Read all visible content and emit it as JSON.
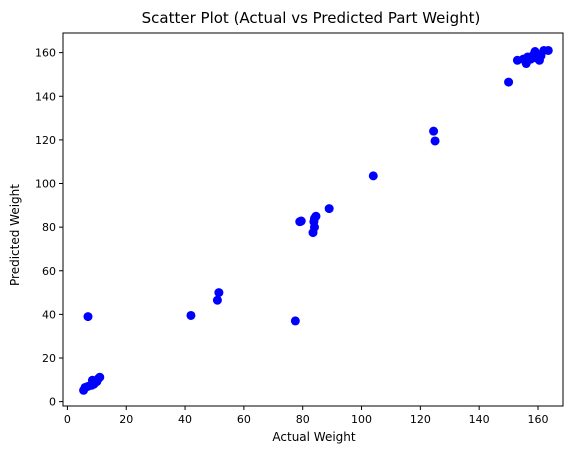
{
  "chart_data": {
    "type": "scatter",
    "title": "Scatter Plot (Actual vs Predicted Part Weight)",
    "xlabel": "Actual Weight",
    "ylabel": "Predicted Weight",
    "xlim": [
      -1.5,
      168.5
    ],
    "ylim": [
      -2,
      169
    ],
    "xticks": [
      0,
      20,
      40,
      60,
      80,
      100,
      120,
      140,
      160
    ],
    "yticks": [
      0,
      20,
      40,
      60,
      80,
      100,
      120,
      140,
      160
    ],
    "grid": false,
    "marker_color": "#0000ff",
    "points": [
      {
        "x": 5.5,
        "y": 5.2
      },
      {
        "x": 6.0,
        "y": 6.5
      },
      {
        "x": 7.0,
        "y": 7.0
      },
      {
        "x": 8.2,
        "y": 7.5
      },
      {
        "x": 9.0,
        "y": 8.0
      },
      {
        "x": 8.5,
        "y": 9.8
      },
      {
        "x": 10.0,
        "y": 9.2
      },
      {
        "x": 10.5,
        "y": 10.5
      },
      {
        "x": 11.0,
        "y": 11.2
      },
      {
        "x": 7.0,
        "y": 39.0
      },
      {
        "x": 42.0,
        "y": 39.5
      },
      {
        "x": 51.0,
        "y": 46.5
      },
      {
        "x": 51.5,
        "y": 50.0
      },
      {
        "x": 77.5,
        "y": 37.0
      },
      {
        "x": 79.0,
        "y": 82.5
      },
      {
        "x": 79.5,
        "y": 82.8
      },
      {
        "x": 83.5,
        "y": 77.5
      },
      {
        "x": 84.0,
        "y": 80.0
      },
      {
        "x": 83.8,
        "y": 82.5
      },
      {
        "x": 84.0,
        "y": 84.0
      },
      {
        "x": 84.5,
        "y": 85.0
      },
      {
        "x": 89.0,
        "y": 88.5
      },
      {
        "x": 104.0,
        "y": 103.5
      },
      {
        "x": 124.5,
        "y": 124.0
      },
      {
        "x": 125.0,
        "y": 119.5
      },
      {
        "x": 150.0,
        "y": 146.5
      },
      {
        "x": 153.0,
        "y": 156.5
      },
      {
        "x": 155.0,
        "y": 157.0
      },
      {
        "x": 156.0,
        "y": 155.0
      },
      {
        "x": 156.5,
        "y": 158.0
      },
      {
        "x": 157.5,
        "y": 157.0
      },
      {
        "x": 158.5,
        "y": 159.0
      },
      {
        "x": 159.0,
        "y": 160.5
      },
      {
        "x": 159.5,
        "y": 157.5
      },
      {
        "x": 160.5,
        "y": 156.5
      },
      {
        "x": 161.0,
        "y": 158.5
      },
      {
        "x": 162.0,
        "y": 161.0
      },
      {
        "x": 163.5,
        "y": 161.0
      }
    ]
  }
}
